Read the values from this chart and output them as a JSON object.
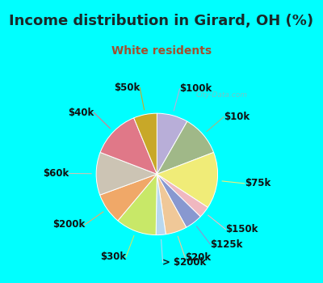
{
  "title": "Income distribution in Girard, OH (%)",
  "subtitle": "White residents",
  "title_color": "#1a2a2a",
  "subtitle_color": "#a05030",
  "bg_cyan": "#00ffff",
  "bg_chart": "#e8f5ee",
  "labels": [
    "$100k",
    "$10k",
    "$75k",
    "$150k",
    "$125k",
    "$20k",
    "> $200k",
    "$30k",
    "$200k",
    "$60k",
    "$40k",
    "$50k"
  ],
  "values": [
    8.0,
    10.5,
    14.5,
    3.0,
    4.5,
    5.5,
    2.5,
    10.5,
    8.0,
    11.0,
    12.5,
    6.0
  ],
  "colors": [
    "#b8aed8",
    "#a0b888",
    "#f0ec78",
    "#f0b8c0",
    "#8898d0",
    "#f0c898",
    "#b8d8f0",
    "#c8e868",
    "#f0a868",
    "#ccc4b4",
    "#e07888",
    "#c8a828"
  ],
  "label_fontsize": 8.5,
  "title_fontsize": 13,
  "subtitle_fontsize": 10
}
